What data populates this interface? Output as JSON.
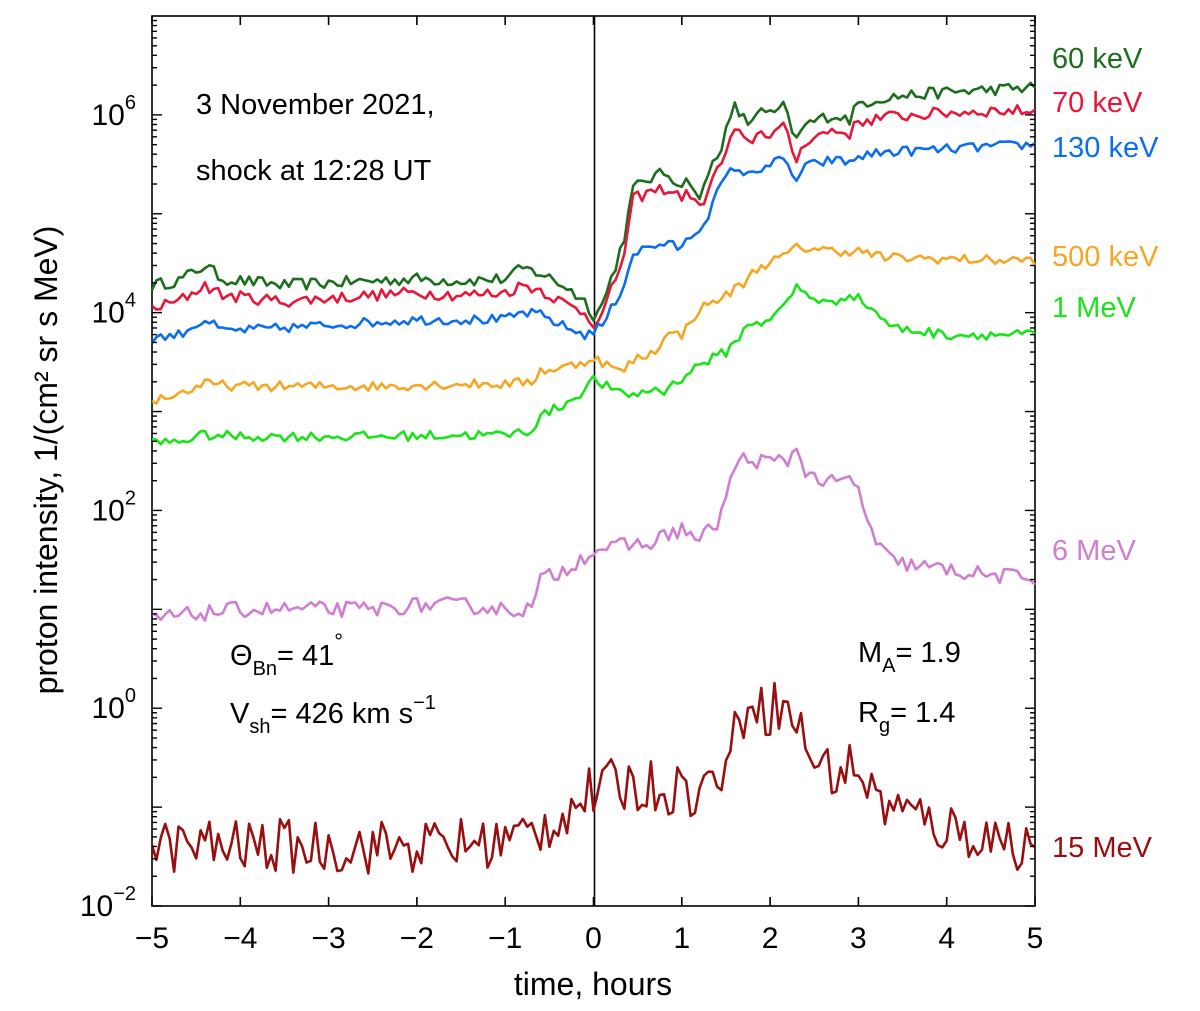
{
  "chart_data": {
    "type": "line",
    "title": "",
    "xlabel": "time, hours",
    "ylabel": "proton intensity, 1/(cm² sr s MeV)",
    "xlim": [
      -5,
      5
    ],
    "ylim": [
      0.01,
      10000000
    ],
    "yscale": "log",
    "grid": false,
    "x_ticks": [
      -5,
      -4,
      -3,
      -2,
      -1,
      0,
      1,
      2,
      3,
      4,
      5
    ],
    "x_tick_labels": [
      "−5",
      "−4",
      "−3",
      "−2",
      "−1",
      "0",
      "1",
      "2",
      "3",
      "4",
      "5"
    ],
    "y_ticks": [
      {
        "value": 1000000,
        "base": "10",
        "exp": "6"
      },
      {
        "value": 10000,
        "base": "10",
        "exp": "4"
      },
      {
        "value": 100,
        "base": "10",
        "exp": "2"
      },
      {
        "value": 1,
        "base": "10",
        "exp": "0"
      },
      {
        "value": 0.01,
        "base": "10",
        "exp": "−2"
      }
    ],
    "vertical_marker_x": 0,
    "annotations": {
      "date": "3 November 2021,",
      "shock": "shock at 12:28 UT",
      "theta_sym": "Θ",
      "theta_sub": "Bn",
      "theta_val": "= 41",
      "theta_deg": "°",
      "vsh_sym": "V",
      "vsh_sub": "sh",
      "vsh_val": "= 426 km s",
      "vsh_exp": "−1",
      "ma_sym": "M",
      "ma_sub": "A",
      "ma_val": "= 1.9",
      "rg_sym": "R",
      "rg_sub": "g",
      "rg_val": "= 1.4"
    },
    "series": [
      {
        "name": "60 keV",
        "color": "#1c6e1c",
        "noise": 0.06,
        "x": [
          -5,
          -4.7,
          -4.4,
          -4.2,
          -3.5,
          -3,
          -2.5,
          -2,
          -1.5,
          -1,
          -0.8,
          -0.6,
          -0.3,
          -0.1,
          0,
          0.1,
          0.25,
          0.35,
          0.45,
          0.6,
          0.8,
          1.0,
          1.1,
          1.2,
          1.3,
          1.45,
          1.6,
          1.75,
          1.85,
          2.0,
          2.15,
          2.3,
          2.4,
          2.7,
          2.9,
          3.0,
          3.3,
          4.0,
          4.5,
          5.0
        ],
        "y": [
          19000,
          21000,
          30000,
          22000,
          19000,
          20000,
          21000,
          22000,
          21000,
          22000,
          28000,
          25000,
          18000,
          13000,
          9500,
          12000,
          30000,
          60000,
          180000,
          220000,
          260000,
          200000,
          220000,
          130000,
          260000,
          500000,
          1200000,
          800000,
          1100000,
          1000000,
          1200000,
          550000,
          800000,
          1000000,
          900000,
          1300000,
          1500000,
          1700000,
          1800000,
          1900000
        ]
      },
      {
        "name": "70 keV",
        "color": "#e8173a",
        "noise": 0.06,
        "x": [
          -5,
          -4.7,
          -4.4,
          -4.2,
          -3.5,
          -3,
          -2.5,
          -2,
          -1.5,
          -1,
          -0.8,
          -0.6,
          -0.3,
          -0.1,
          0,
          0.1,
          0.25,
          0.35,
          0.45,
          0.6,
          0.8,
          1.0,
          1.1,
          1.2,
          1.3,
          1.45,
          1.6,
          1.75,
          1.85,
          2.0,
          2.15,
          2.3,
          2.4,
          2.7,
          2.9,
          3.0,
          3.3,
          4.0,
          4.5,
          5.0
        ],
        "y": [
          11000,
          13000,
          19000,
          15000,
          13000,
          14000,
          15000,
          16000,
          15000,
          16000,
          19000,
          17000,
          12000,
          10000,
          8000,
          9500,
          22000,
          40000,
          140000,
          160000,
          180000,
          150000,
          160000,
          110000,
          180000,
          330000,
          700000,
          500000,
          650000,
          650000,
          750000,
          350000,
          550000,
          700000,
          650000,
          850000,
          950000,
          1050000,
          1100000,
          1100000
        ]
      },
      {
        "name": "130 keV",
        "color": "#0b6ef0",
        "noise": 0.05,
        "x": [
          -5,
          -4.7,
          -4.4,
          -4.2,
          -3.5,
          -3,
          -2.5,
          -2,
          -1.5,
          -1,
          -0.8,
          -0.6,
          -0.3,
          -0.1,
          0,
          0.1,
          0.25,
          0.35,
          0.45,
          0.6,
          0.8,
          1.0,
          1.1,
          1.2,
          1.3,
          1.45,
          1.6,
          1.75,
          1.85,
          2.0,
          2.15,
          2.3,
          2.4,
          2.7,
          2.9,
          3.0,
          3.3,
          4.0,
          4.5,
          5.0
        ],
        "y": [
          5500,
          6000,
          8500,
          6500,
          7000,
          7500,
          8000,
          8500,
          8500,
          8500,
          10000,
          9500,
          7000,
          6000,
          6500,
          7500,
          13000,
          20000,
          40000,
          45000,
          50000,
          45000,
          60000,
          70000,
          100000,
          200000,
          300000,
          240000,
          280000,
          320000,
          350000,
          220000,
          300000,
          350000,
          330000,
          380000,
          420000,
          450000,
          480000,
          500000
        ]
      },
      {
        "name": "500 keV",
        "color": "#f5a623",
        "noise": 0.05,
        "x": [
          -5,
          -4.7,
          -4.4,
          -4,
          -3.5,
          -3,
          -2.5,
          -2,
          -1.5,
          -1,
          -0.7,
          -0.6,
          -0.4,
          -0.2,
          0,
          0.15,
          0.3,
          0.5,
          0.7,
          0.8,
          1.0,
          1.2,
          1.3,
          1.5,
          1.7,
          1.8,
          1.9,
          2.1,
          2.3,
          2.5,
          2.7,
          3.0,
          3.3,
          4.0,
          4.5,
          5.0
        ],
        "y": [
          1300,
          1500,
          1900,
          1800,
          1800,
          1800,
          1800,
          1850,
          1900,
          1900,
          2000,
          2600,
          2700,
          3000,
          3500,
          3000,
          2500,
          3500,
          4000,
          6000,
          6000,
          11000,
          12000,
          15000,
          20000,
          25000,
          30000,
          35000,
          45000,
          45000,
          42000,
          42000,
          36000,
          35000,
          34000,
          34000
        ]
      },
      {
        "name": "1 MeV",
        "color": "#19e319",
        "noise": 0.05,
        "x": [
          -5,
          -4.7,
          -4.4,
          -4,
          -3.5,
          -3,
          -2.5,
          -2,
          -1.5,
          -1,
          -0.7,
          -0.6,
          -0.4,
          -0.2,
          0,
          0.15,
          0.3,
          0.5,
          0.7,
          0.8,
          1.0,
          1.2,
          1.3,
          1.5,
          1.7,
          1.8,
          1.9,
          2.1,
          2.3,
          2.5,
          2.7,
          2.9,
          3.1,
          3.4,
          4.0,
          4.5,
          5.0
        ],
        "y": [
          480,
          500,
          580,
          560,
          560,
          560,
          560,
          570,
          580,
          580,
          650,
          900,
          1100,
          1400,
          2100,
          1800,
          1500,
          1500,
          1700,
          1600,
          2200,
          3000,
          3300,
          4000,
          6500,
          8000,
          8000,
          10000,
          18000,
          14000,
          12000,
          16000,
          12000,
          7000,
          6000,
          6000,
          6000
        ]
      },
      {
        "name": "6 MeV",
        "color": "#d07ed0",
        "noise": 0.08,
        "x": [
          -5,
          -4.5,
          -4,
          -3.5,
          -3,
          -2.5,
          -2,
          -1.5,
          -1,
          -0.7,
          -0.6,
          -0.4,
          -0.2,
          0,
          0.2,
          0.4,
          0.6,
          0.8,
          1.0,
          1.2,
          1.4,
          1.5,
          1.6,
          1.7,
          1.8,
          2.0,
          2.2,
          2.3,
          2.4,
          2.5,
          2.7,
          2.9,
          3.0,
          3.2,
          3.4,
          4.0,
          4.5,
          5.0
        ],
        "y": [
          8,
          9,
          10,
          10,
          10,
          10,
          11,
          11,
          10,
          10,
          20,
          23,
          30,
          40,
          42,
          45,
          45,
          55,
          65,
          50,
          75,
          130,
          280,
          330,
          320,
          310,
          320,
          420,
          260,
          210,
          190,
          200,
          160,
          45,
          30,
          25,
          22,
          21
        ]
      },
      {
        "name": "15 MeV",
        "color": "#990f0f",
        "noise": 0.28,
        "x": [
          -5,
          -4,
          -3,
          -2,
          -1,
          -0.6,
          -0.4,
          -0.2,
          0,
          0.3,
          0.6,
          0.9,
          1.2,
          1.4,
          1.6,
          1.7,
          1.8,
          1.9,
          2.0,
          2.1,
          2.3,
          2.5,
          2.7,
          2.9,
          3.0,
          3.2,
          3.5,
          4.0,
          4.5,
          5.0
        ],
        "y": [
          0.04,
          0.04,
          0.04,
          0.04,
          0.045,
          0.06,
          0.08,
          0.11,
          0.14,
          0.17,
          0.16,
          0.16,
          0.14,
          0.2,
          0.5,
          0.9,
          1.6,
          1.0,
          1.0,
          1.1,
          0.7,
          0.3,
          0.22,
          0.25,
          0.25,
          0.12,
          0.09,
          0.06,
          0.05,
          0.04
        ]
      }
    ]
  }
}
